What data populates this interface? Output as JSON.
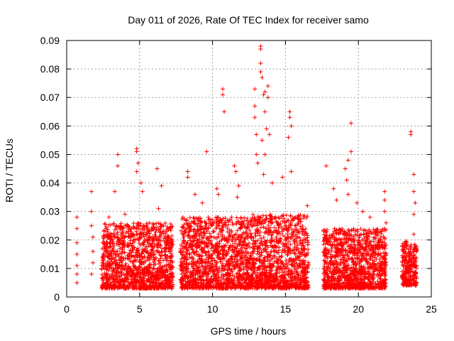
{
  "chart_data": {
    "type": "scatter",
    "title": "Day 011 of 2026, Rate Of TEC Index for receiver samo",
    "xlabel": "GPS time / hours",
    "ylabel": "ROTI / TECUs",
    "xlim": [
      0,
      25
    ],
    "ylim": [
      0,
      0.09
    ],
    "x_ticks": [
      "0",
      "5",
      "10",
      "15",
      "20",
      "25"
    ],
    "y_ticks": [
      "0",
      "0.01",
      "0.02",
      "0.03",
      "0.04",
      "0.05",
      "0.06",
      "0.07",
      "0.08",
      "0.09"
    ],
    "grid": true,
    "marker": "plus",
    "color": "#ff0000",
    "series": [
      {
        "points": [
          [
            0.7,
            0.028
          ],
          [
            0.7,
            0.024
          ],
          [
            0.7,
            0.019
          ],
          [
            0.7,
            0.015
          ],
          [
            0.7,
            0.011
          ],
          [
            0.7,
            0.008
          ],
          [
            0.7,
            0.005
          ],
          [
            1.7,
            0.037
          ],
          [
            1.7,
            0.03
          ],
          [
            1.7,
            0.025
          ],
          [
            1.8,
            0.021
          ],
          [
            1.8,
            0.016
          ],
          [
            1.8,
            0.012
          ],
          [
            1.7,
            0.008
          ],
          [
            2.9,
            0.028
          ],
          [
            3.3,
            0.037
          ],
          [
            3.5,
            0.046
          ],
          [
            3.5,
            0.05
          ],
          [
            4.0,
            0.029
          ],
          [
            4.2,
            0.025
          ],
          [
            4.8,
            0.052
          ],
          [
            4.8,
            0.051
          ],
          [
            4.9,
            0.047
          ],
          [
            4.8,
            0.044
          ],
          [
            5.1,
            0.04
          ],
          [
            5.2,
            0.037
          ],
          [
            6.2,
            0.045
          ],
          [
            6.5,
            0.039
          ],
          [
            6.3,
            0.031
          ],
          [
            8.3,
            0.044
          ],
          [
            8.3,
            0.042
          ],
          [
            8.8,
            0.036
          ],
          [
            9.3,
            0.033
          ],
          [
            9.6,
            0.051
          ],
          [
            10.3,
            0.038
          ],
          [
            10.4,
            0.036
          ],
          [
            10.7,
            0.073
          ],
          [
            10.7,
            0.071
          ],
          [
            10.8,
            0.065
          ],
          [
            11.5,
            0.046
          ],
          [
            11.6,
            0.044
          ],
          [
            11.8,
            0.039
          ],
          [
            11.7,
            0.035
          ],
          [
            12.9,
            0.073
          ],
          [
            12.9,
            0.067
          ],
          [
            12.9,
            0.063
          ],
          [
            13.0,
            0.057
          ],
          [
            13.0,
            0.05
          ],
          [
            13.1,
            0.047
          ],
          [
            13.3,
            0.088
          ],
          [
            13.3,
            0.087
          ],
          [
            13.3,
            0.082
          ],
          [
            13.3,
            0.079
          ],
          [
            13.4,
            0.077
          ],
          [
            13.5,
            0.071
          ],
          [
            13.6,
            0.072
          ],
          [
            13.8,
            0.074
          ],
          [
            13.8,
            0.07
          ],
          [
            13.6,
            0.065
          ],
          [
            13.7,
            0.059
          ],
          [
            13.9,
            0.057
          ],
          [
            13.4,
            0.055
          ],
          [
            13.6,
            0.05
          ],
          [
            13.5,
            0.043
          ],
          [
            14.1,
            0.04
          ],
          [
            14.8,
            0.042
          ],
          [
            15.3,
            0.065
          ],
          [
            15.3,
            0.063
          ],
          [
            15.4,
            0.06
          ],
          [
            15.2,
            0.056
          ],
          [
            15.4,
            0.044
          ],
          [
            17.8,
            0.046
          ],
          [
            18.3,
            0.038
          ],
          [
            18.5,
            0.034
          ],
          [
            16.5,
            0.032
          ],
          [
            19.1,
            0.045
          ],
          [
            19.2,
            0.041
          ],
          [
            19.3,
            0.036
          ],
          [
            19.3,
            0.048
          ],
          [
            19.5,
            0.061
          ],
          [
            19.5,
            0.051
          ],
          [
            19.9,
            0.033
          ],
          [
            20.3,
            0.03
          ],
          [
            20.8,
            0.028
          ],
          [
            21.8,
            0.037
          ],
          [
            21.8,
            0.034
          ],
          [
            21.8,
            0.03
          ],
          [
            21.9,
            0.026
          ],
          [
            21.8,
            0.019
          ],
          [
            21.9,
            0.015
          ],
          [
            21.8,
            0.012
          ],
          [
            21.8,
            0.008
          ],
          [
            21.8,
            0.005
          ],
          [
            23.6,
            0.058
          ],
          [
            23.6,
            0.057
          ],
          [
            23.8,
            0.043
          ],
          [
            23.8,
            0.037
          ],
          [
            23.9,
            0.033
          ],
          [
            23.8,
            0.029
          ],
          [
            23.8,
            0.022
          ],
          [
            23.9,
            0.018
          ],
          [
            23.8,
            0.012
          ],
          [
            23.9,
            0.008
          ],
          [
            23.9,
            0.005
          ],
          [
            23.3,
            0.018
          ],
          [
            23.2,
            0.013
          ],
          [
            23.3,
            0.009
          ],
          [
            23.1,
            0.006
          ]
        ]
      }
    ],
    "dense_bands": [
      {
        "x": [
          2.4,
          7.3
        ],
        "y": [
          0.003,
          0.026
        ]
      },
      {
        "x": [
          7.8,
          12.6
        ],
        "y": [
          0.003,
          0.028
        ]
      },
      {
        "x": [
          12.6,
          16.6
        ],
        "y": [
          0.003,
          0.029
        ]
      },
      {
        "x": [
          17.6,
          21.9
        ],
        "y": [
          0.003,
          0.024
        ]
      },
      {
        "x": [
          23.0,
          24.0
        ],
        "y": [
          0.004,
          0.02
        ]
      }
    ]
  }
}
